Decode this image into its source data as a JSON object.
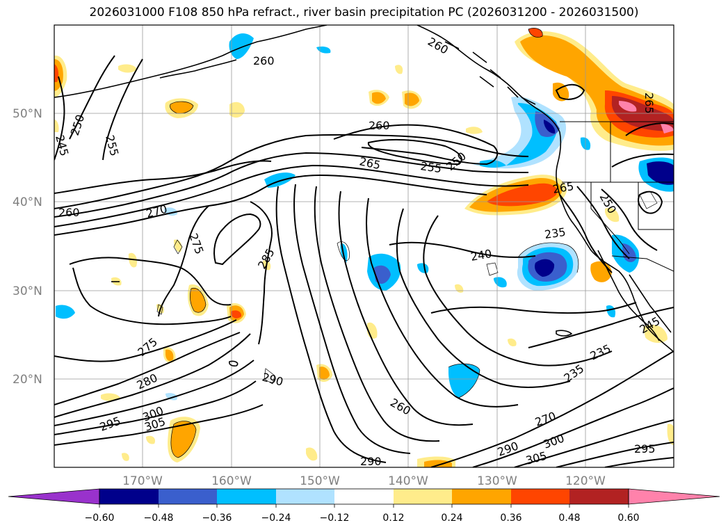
{
  "title": "2026031000 F108 850 hPa refract., river basin precipitation PC (2026031200 - 2026031500)",
  "map": {
    "lat_labels": [
      "50°N",
      "40°N",
      "30°N",
      "20°N"
    ],
    "lon_labels": [
      "170°W",
      "160°W",
      "150°W",
      "140°W",
      "130°W",
      "120°W"
    ],
    "contour_labels": [
      "260",
      "250",
      "255",
      "245",
      "260",
      "270",
      "275",
      "265",
      "255",
      "250",
      "260",
      "285",
      "240",
      "235",
      "265",
      "290",
      "275",
      "280",
      "295",
      "300",
      "305",
      "260",
      "270",
      "290",
      "305",
      "295",
      "300",
      "235",
      "235",
      "245",
      "260",
      "265",
      "290",
      "250"
    ]
  },
  "colorbar": {
    "ticks": [
      "−0.60",
      "−0.48",
      "−0.36",
      "−0.24",
      "−0.12",
      "0.12",
      "0.24",
      "0.36",
      "0.48",
      "0.60"
    ],
    "colors": [
      "#9932cc",
      "#00008b",
      "#3a5fcd",
      "#00bfff",
      "#b0e2ff",
      "#ffffff",
      "#ffec8b",
      "#ffa500",
      "#ff4500",
      "#b22222",
      "#ff82ab"
    ]
  }
}
